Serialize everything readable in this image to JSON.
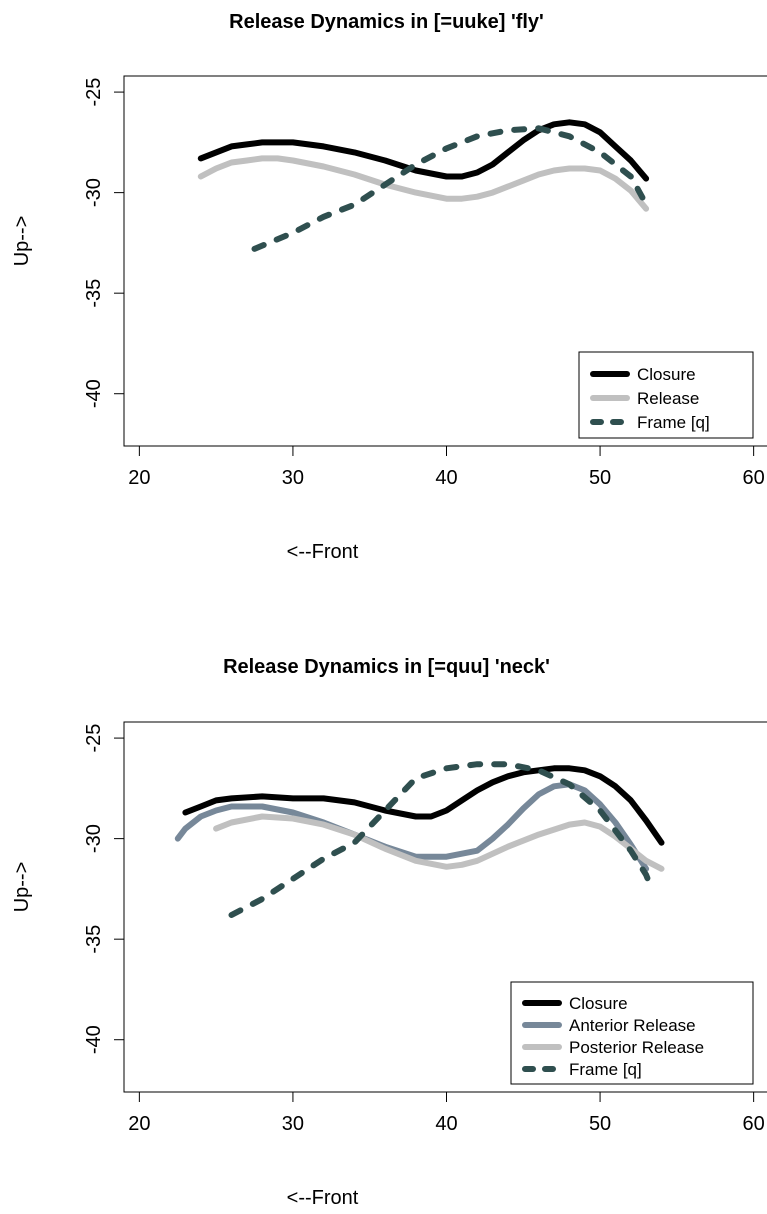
{
  "chart_data": [
    {
      "type": "line",
      "title": "Release Dynamics in [=uuke] 'fly'",
      "xlabel": "<--Front",
      "ylabel": "Up-->",
      "xlim": [
        19,
        61
      ],
      "ylim": [
        -42.6,
        -24.2
      ],
      "xticks": [
        20,
        30,
        40,
        50,
        60
      ],
      "yticks": [
        -25,
        -30,
        -35,
        -40
      ],
      "legend": "bottom-right",
      "series": [
        {
          "name": "Closure",
          "color": "#000000",
          "dash": "solid",
          "x": [
            24,
            25,
            26,
            27,
            28,
            30,
            32,
            34,
            36,
            38,
            40,
            41,
            42,
            43,
            44,
            45,
            46,
            47,
            48,
            49,
            50,
            51,
            52,
            53
          ],
          "y": [
            -28.3,
            -28.0,
            -27.7,
            -27.6,
            -27.5,
            -27.5,
            -27.7,
            -28.0,
            -28.4,
            -28.9,
            -29.2,
            -29.2,
            -29.0,
            -28.6,
            -28.0,
            -27.4,
            -26.9,
            -26.6,
            -26.5,
            -26.6,
            -27.0,
            -27.7,
            -28.4,
            -29.3
          ]
        },
        {
          "name": "Release",
          "color": "#c0c0c0",
          "dash": "solid",
          "x": [
            24,
            25,
            26,
            27,
            28,
            29,
            30,
            32,
            34,
            36,
            38,
            40,
            41,
            42,
            43,
            44,
            45,
            46,
            47,
            48,
            49,
            50,
            51,
            52,
            53
          ],
          "y": [
            -29.2,
            -28.8,
            -28.5,
            -28.4,
            -28.3,
            -28.3,
            -28.4,
            -28.7,
            -29.1,
            -29.6,
            -30.0,
            -30.3,
            -30.3,
            -30.2,
            -30.0,
            -29.7,
            -29.4,
            -29.1,
            -28.9,
            -28.8,
            -28.8,
            -28.9,
            -29.3,
            -29.9,
            -30.8
          ]
        },
        {
          "name": "Frame [q]",
          "color": "#2f4f4f",
          "dash": "dashed",
          "x": [
            27.5,
            30,
            32,
            34,
            36,
            38,
            40,
            42,
            44,
            46,
            48,
            50,
            52,
            52.8
          ],
          "y": [
            -32.8,
            -32.0,
            -31.2,
            -30.6,
            -29.6,
            -28.6,
            -27.8,
            -27.2,
            -26.9,
            -26.8,
            -27.2,
            -28.0,
            -29.2,
            -30.3
          ]
        }
      ]
    },
    {
      "type": "line",
      "title": "Release Dynamics in [=quu] 'neck'",
      "xlabel": "<--Front",
      "ylabel": "Up-->",
      "xlim": [
        19,
        61
      ],
      "ylim": [
        -42.6,
        -24.2
      ],
      "xticks": [
        20,
        30,
        40,
        50,
        60
      ],
      "yticks": [
        -25,
        -30,
        -35,
        -40
      ],
      "legend": "bottom-right",
      "series": [
        {
          "name": "Closure",
          "color": "#000000",
          "dash": "solid",
          "x": [
            23,
            24,
            25,
            26,
            28,
            30,
            32,
            34,
            36,
            38,
            39,
            40,
            41,
            42,
            43,
            44,
            45,
            46,
            47,
            48,
            49,
            50,
            51,
            52,
            53,
            54
          ],
          "y": [
            -28.7,
            -28.4,
            -28.1,
            -28.0,
            -27.9,
            -28.0,
            -28.0,
            -28.2,
            -28.6,
            -28.9,
            -28.9,
            -28.6,
            -28.1,
            -27.6,
            -27.2,
            -26.9,
            -26.7,
            -26.6,
            -26.5,
            -26.5,
            -26.6,
            -26.9,
            -27.4,
            -28.1,
            -29.1,
            -30.2
          ]
        },
        {
          "name": "Anterior Release",
          "color": "#778899",
          "dash": "solid",
          "x": [
            22.5,
            23,
            24,
            25,
            26,
            28,
            30,
            32,
            34,
            36,
            38,
            40,
            42,
            43,
            44,
            45,
            46,
            47,
            48,
            49,
            50,
            51,
            52,
            53
          ],
          "y": [
            -30.0,
            -29.5,
            -28.9,
            -28.6,
            -28.4,
            -28.4,
            -28.7,
            -29.2,
            -29.8,
            -30.4,
            -30.9,
            -30.9,
            -30.6,
            -30.0,
            -29.3,
            -28.5,
            -27.8,
            -27.4,
            -27.3,
            -27.6,
            -28.3,
            -29.2,
            -30.3,
            -31.5
          ]
        },
        {
          "name": "Posterior Release",
          "color": "#c0c0c0",
          "dash": "solid",
          "x": [
            25,
            26,
            28,
            30,
            32,
            34,
            36,
            38,
            40,
            41,
            42,
            44,
            46,
            48,
            49,
            50,
            51,
            52,
            53,
            54
          ],
          "y": [
            -29.5,
            -29.2,
            -28.9,
            -29.0,
            -29.3,
            -29.8,
            -30.5,
            -31.1,
            -31.4,
            -31.3,
            -31.1,
            -30.4,
            -29.8,
            -29.3,
            -29.2,
            -29.4,
            -29.9,
            -30.5,
            -31.1,
            -31.5
          ]
        },
        {
          "name": "Frame [q]",
          "color": "#2f4f4f",
          "dash": "dashed",
          "x": [
            26,
            28,
            30,
            32,
            34,
            36,
            37,
            38,
            40,
            42,
            44,
            46,
            48,
            50,
            51,
            52,
            53,
            53.3
          ],
          "y": [
            -33.8,
            -33.0,
            -32.0,
            -31.0,
            -30.2,
            -28.6,
            -27.8,
            -27.0,
            -26.5,
            -26.3,
            -26.3,
            -26.6,
            -27.3,
            -28.6,
            -29.6,
            -30.6,
            -31.8,
            -32.4
          ]
        }
      ]
    }
  ]
}
